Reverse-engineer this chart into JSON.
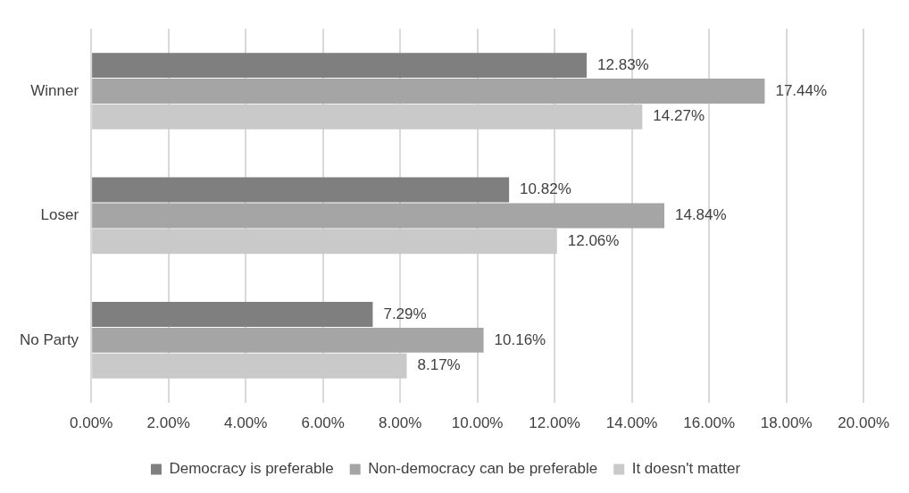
{
  "chart_data": {
    "type": "bar",
    "orientation": "horizontal",
    "categories": [
      "Winner",
      "Loser",
      "No Party"
    ],
    "series": [
      {
        "name": "Democracy is preferable",
        "color": "#7f7f7f",
        "values": [
          12.83,
          10.82,
          7.29
        ],
        "value_labels": [
          "12.83%",
          "10.82%",
          "7.29%"
        ]
      },
      {
        "name": "Non-democracy can be preferable",
        "color": "#a5a5a5",
        "values": [
          17.44,
          14.84,
          10.16
        ],
        "value_labels": [
          "17.44%",
          "14.84%",
          "10.16%"
        ]
      },
      {
        "name": "It doesn't matter",
        "color": "#c9c9c9",
        "values": [
          14.27,
          12.06,
          8.17
        ],
        "value_labels": [
          "14.27%",
          "12.06%",
          "8.17%"
        ]
      }
    ],
    "xlim": [
      0,
      20
    ],
    "xticks": [
      {
        "value": 0,
        "label": "0.00%"
      },
      {
        "value": 2,
        "label": "2.00%"
      },
      {
        "value": 4,
        "label": "4.00%"
      },
      {
        "value": 6,
        "label": "6.00%"
      },
      {
        "value": 8,
        "label": "8.00%"
      },
      {
        "value": 10,
        "label": "10.00%"
      },
      {
        "value": 12,
        "label": "12.00%"
      },
      {
        "value": 14,
        "label": "14.00%"
      },
      {
        "value": 16,
        "label": "16.00%"
      },
      {
        "value": 18,
        "label": "18.00%"
      },
      {
        "value": 20,
        "label": "20.00%"
      }
    ],
    "grid": "x",
    "legend": "bottom"
  }
}
